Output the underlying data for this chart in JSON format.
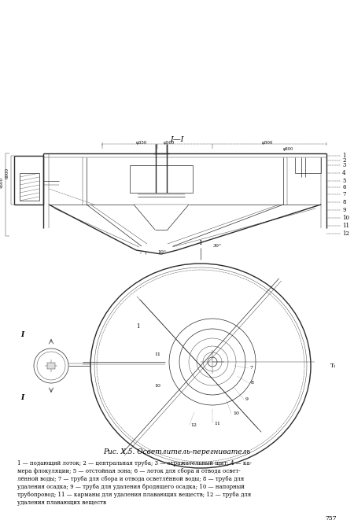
{
  "bg_color": "#ffffff",
  "title": "Рис. Х.5. Осветлитель-перегниватель",
  "caption_lines": [
    "1 — подающий лоток; 2 — центральная труба; 3 — отражательный щит; 4 — ка-",
    "мера флокуляции; 5 — отстойная зона; 6 — лоток для сбора и отвода освет-",
    "лённой воды; 7 — труба для сбора и отвода осветлённой воды; 8 — труба для",
    "удаления осадка; 9 — труба для удаления бродящего осадка; 10 — напорный",
    "трубопровод; 11 — карманы для удаления плавающих веществ; 12 — труба для",
    "удаления плавающих веществ"
  ],
  "page_number": "757",
  "line_color": "#2a2a2a"
}
